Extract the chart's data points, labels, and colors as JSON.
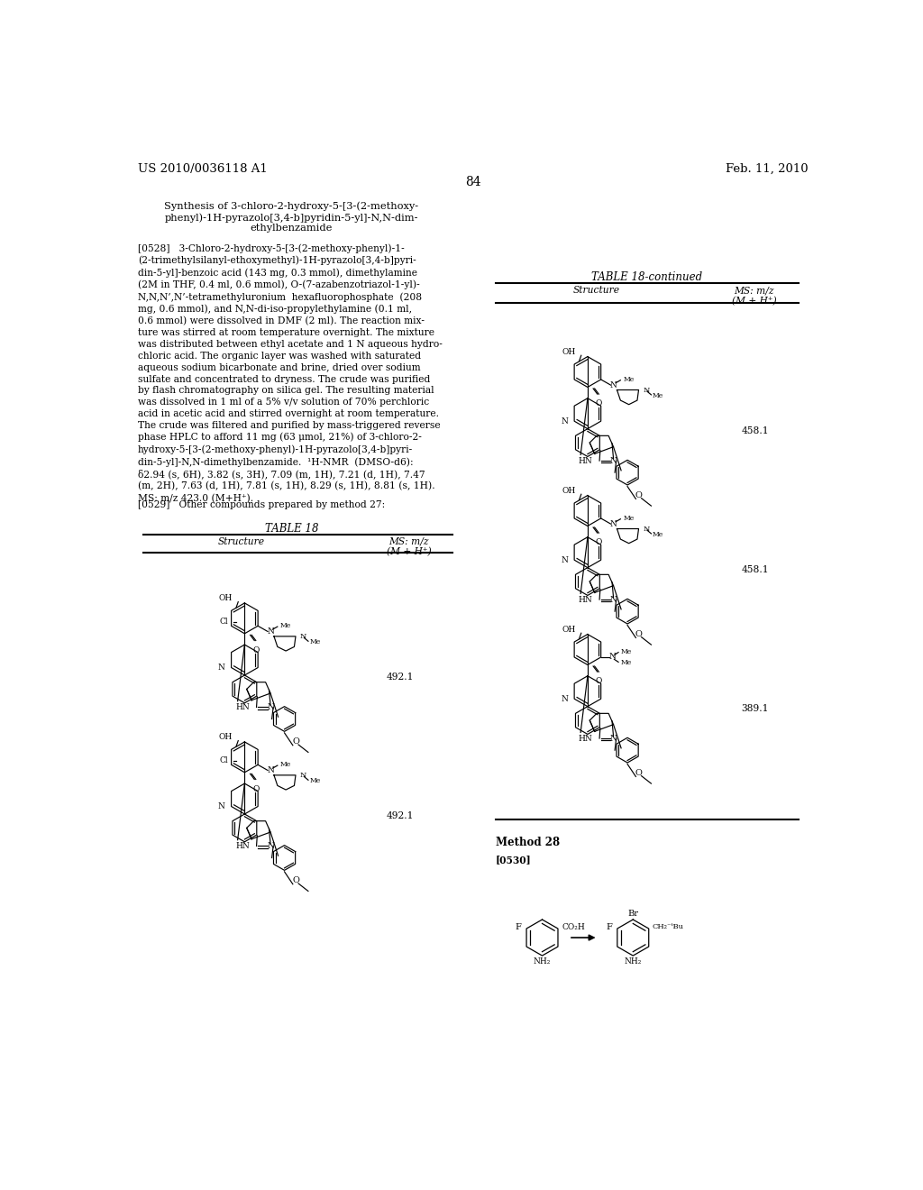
{
  "background_color": "#ffffff",
  "header_left": "US 2010/0036118 A1",
  "header_right": "Feb. 11, 2010",
  "page_number": "84",
  "title": "Synthesis of 3-chloro-2-hydroxy-5-[3-(2-methoxy-\nphenyl)-1H-pyrazolo[3,4-b]pyridin-5-yl]-N,N-dim-\nethylbenzamide",
  "para_0528": "[0528]   3-Chloro-2-hydroxy-5-[3-(2-methoxy-phenyl)-1-\n(2-trimethylsilanyl-ethoxymethyl)-1H-pyrazolo[3,4-b]pyri-\ndin-5-yl]-benzoic acid (143 mg, 0.3 mmol), dimethylamine\n(2M in THF, 0.4 ml, 0.6 mmol), O-(7-azabenzotriazol-1-yl)-\nN,N,N’,N’-tetramethyluronium  hexafluorophosphate  (208\nmg, 0.6 mmol), and N,N-di-iso-propylethylamine (0.1 ml,\n0.6 mmol) were dissolved in DMF (2 ml). The reaction mix-\nture was stirred at room temperature overnight. The mixture\nwas distributed between ethyl acetate and 1 N aqueous hydro-\nchloric acid. The organic layer was washed with saturated\naqueous sodium bicarbonate and brine, dried over sodium\nsulfate and concentrated to dryness. The crude was purified\nby flash chromatography on silica gel. The resulting material\nwas dissolved in 1 ml of a 5% v/v solution of 70% perchloric\nacid in acetic acid and stirred overnight at room temperature.\nThe crude was filtered and purified by mass-triggered reverse\nphase HPLC to afford 11 mg (63 μmol, 21%) of 3-chloro-2-\nhydroxy-5-[3-(2-methoxy-phenyl)-1H-pyrazolo[3,4-b]pyri-\ndin-5-yl]-N,N-dimethylbenzamide.  ¹H-NMR  (DMSO-d6):\nδ2.94 (s, 6H), 3.82 (s, 3H), 7.09 (m, 1H), 7.21 (d, 1H), 7.47\n(m, 2H), 7.63 (d, 1H), 7.81 (s, 1H), 8.29 (s, 1H), 8.81 (s, 1H).\nMS: m/z 423.0 (M+H⁺).",
  "para_0529": "[0529]   Other compounds prepared by method 27:",
  "table18_title": "TABLE 18",
  "table18_struct": "Structure",
  "table18_ms": "MS: m/z\n(M + H⁺)",
  "table18c_title": "TABLE 18-continued",
  "method28": "Method 28",
  "para_0530": "[0530]"
}
